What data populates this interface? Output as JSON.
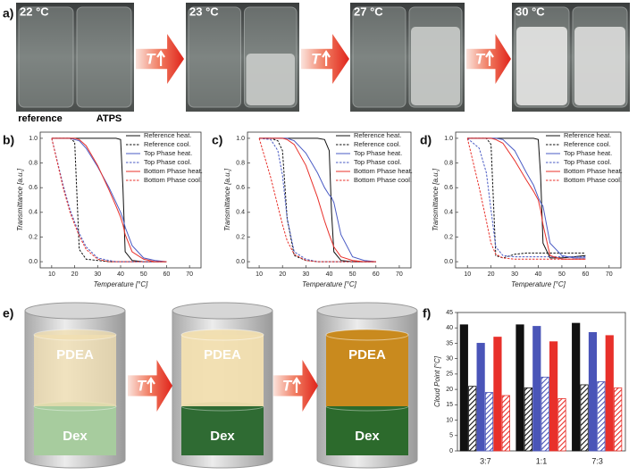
{
  "panel_labels": [
    "a)",
    "b)",
    "c)",
    "d)",
    "e)",
    "f)"
  ],
  "photos": {
    "temperatures": [
      "22 °C",
      "23 °C",
      "27 °C",
      "30 °C"
    ],
    "sample_labels": [
      "reference",
      "ATPS"
    ]
  },
  "arrow_label": "T",
  "diagram": {
    "top_phase": "PDEA",
    "bottom_phase": "Dex"
  },
  "chart_data": [
    {
      "type": "line",
      "xlabel": "Temperature [°C]",
      "ylabel": "Transmittance [a.u.]",
      "x": [
        10,
        15,
        18,
        20,
        22,
        25,
        30,
        35,
        38,
        40,
        41,
        42,
        45,
        50,
        55,
        60
      ],
      "xlim": [
        5,
        75
      ],
      "ylim": [
        -0.05,
        1.05
      ],
      "xticks": [
        10,
        20,
        30,
        40,
        50,
        60,
        70
      ],
      "yticks": [
        {
          "value": 0,
          "label": "0.0"
        },
        {
          "value": 0.2,
          "label": "0.2"
        },
        {
          "value": 0.4,
          "label": "0.4"
        },
        {
          "value": 0.6,
          "label": "0.6"
        },
        {
          "value": 0.8,
          "label": "0.8"
        },
        {
          "value": 1,
          "label": "1.0"
        }
      ],
      "legend": "upper right",
      "series": [
        {
          "name": "Reference heat.",
          "color": "#111111",
          "dashed": false,
          "values": [
            1,
            1,
            1,
            1,
            1,
            1,
            1,
            1,
            1,
            0.99,
            0.6,
            0.08,
            0.01,
            0,
            0,
            0
          ]
        },
        {
          "name": "Reference cool.",
          "color": "#111111",
          "dashed": true,
          "values": [
            1,
            1,
            1,
            0.97,
            0.1,
            0.02,
            0.01,
            0,
            0,
            0,
            0,
            0,
            0,
            0,
            0,
            0
          ]
        },
        {
          "name": "Top Phase heat.",
          "color": "#4a5bc4",
          "dashed": false,
          "values": [
            1,
            1,
            1,
            0.99,
            0.98,
            0.92,
            0.77,
            0.6,
            0.48,
            0.4,
            0.35,
            0.28,
            0.13,
            0.03,
            0.01,
            0
          ]
        },
        {
          "name": "Top Phase cool.",
          "color": "#4a5bc4",
          "dashed": true,
          "values": [
            1,
            0.62,
            0.42,
            0.32,
            0.23,
            0.12,
            0.03,
            0.01,
            0,
            0,
            0,
            0,
            0,
            0,
            0,
            0
          ]
        },
        {
          "name": "Bottom Phase heat.",
          "color": "#e8302a",
          "dashed": false,
          "values": [
            1,
            1,
            1,
            1,
            0.99,
            0.94,
            0.78,
            0.58,
            0.45,
            0.36,
            0.3,
            0.22,
            0.08,
            0.02,
            0,
            0
          ]
        },
        {
          "name": "Bottom Phase cool.",
          "color": "#e8302a",
          "dashed": true,
          "values": [
            1,
            0.6,
            0.4,
            0.3,
            0.21,
            0.1,
            0.02,
            0,
            0,
            0,
            0,
            0,
            0,
            0,
            0,
            0
          ]
        }
      ]
    },
    {
      "type": "line",
      "xlabel": "Temperature [°C]",
      "ylabel": "Transmittance [a.u.]",
      "x": [
        10,
        15,
        18,
        20,
        22,
        25,
        30,
        35,
        38,
        40,
        41,
        42,
        45,
        50,
        55,
        60
      ],
      "xlim": [
        5,
        75
      ],
      "ylim": [
        -0.05,
        1.05
      ],
      "xticks": [
        10,
        20,
        30,
        40,
        50,
        60,
        70
      ],
      "yticks": [
        {
          "value": 0,
          "label": "0.0"
        },
        {
          "value": 0.2,
          "label": "0.2"
        },
        {
          "value": 0.4,
          "label": "0.4"
        },
        {
          "value": 0.6,
          "label": "0.6"
        },
        {
          "value": 0.8,
          "label": "0.8"
        },
        {
          "value": 1,
          "label": "1.0"
        }
      ],
      "legend": "upper right",
      "series": [
        {
          "name": "Reference heat.",
          "color": "#111111",
          "dashed": false,
          "values": [
            1,
            1,
            1,
            1,
            1,
            1,
            1,
            1,
            0.99,
            0.9,
            0.4,
            0.08,
            0.01,
            0,
            0,
            0
          ]
        },
        {
          "name": "Reference cool.",
          "color": "#111111",
          "dashed": true,
          "values": [
            1,
            1,
            0.98,
            0.9,
            0.35,
            0.05,
            0.01,
            0,
            0,
            0,
            0,
            0,
            0,
            0,
            0,
            0
          ]
        },
        {
          "name": "Top Phase heat.",
          "color": "#4a5bc4",
          "dashed": false,
          "values": [
            1,
            1,
            1,
            1,
            1,
            0.98,
            0.88,
            0.72,
            0.6,
            0.54,
            0.52,
            0.48,
            0.22,
            0.04,
            0.01,
            0
          ]
        },
        {
          "name": "Top Phase cool.",
          "color": "#4a5bc4",
          "dashed": true,
          "values": [
            1,
            0.99,
            0.9,
            0.7,
            0.35,
            0.08,
            0.02,
            0,
            0,
            0,
            0,
            0,
            0,
            0,
            0,
            0
          ]
        },
        {
          "name": "Bottom Phase heat.",
          "color": "#e8302a",
          "dashed": false,
          "values": [
            1,
            1,
            1,
            1,
            0.99,
            0.95,
            0.78,
            0.52,
            0.33,
            0.22,
            0.17,
            0.12,
            0.04,
            0.01,
            0,
            0
          ]
        },
        {
          "name": "Bottom Phase cool.",
          "color": "#e8302a",
          "dashed": true,
          "values": [
            1,
            0.68,
            0.45,
            0.3,
            0.17,
            0.06,
            0.01,
            0,
            0,
            0,
            0,
            0,
            0,
            0,
            0,
            0
          ]
        }
      ]
    },
    {
      "type": "line",
      "xlabel": "Temperature [°C]",
      "ylabel": "Transmittance [a.u.]",
      "x": [
        10,
        15,
        18,
        20,
        22,
        25,
        30,
        35,
        38,
        40,
        41,
        42,
        45,
        50,
        55,
        60
      ],
      "xlim": [
        5,
        75
      ],
      "ylim": [
        -0.05,
        1.05
      ],
      "xticks": [
        10,
        20,
        30,
        40,
        50,
        60,
        70
      ],
      "yticks": [
        {
          "value": 0,
          "label": "0.0"
        },
        {
          "value": 0.2,
          "label": "0.2"
        },
        {
          "value": 0.4,
          "label": "0.4"
        },
        {
          "value": 0.6,
          "label": "0.6"
        },
        {
          "value": 0.8,
          "label": "0.8"
        },
        {
          "value": 1,
          "label": "1.0"
        }
      ],
      "legend": "upper right",
      "series": [
        {
          "name": "Reference heat.",
          "color": "#111111",
          "dashed": false,
          "values": [
            1,
            1,
            1,
            1,
            1,
            1,
            1,
            1,
            1,
            0.99,
            0.7,
            0.15,
            0.03,
            0.03,
            0.04,
            0.05
          ]
        },
        {
          "name": "Reference cool.",
          "color": "#111111",
          "dashed": true,
          "values": [
            1,
            1,
            1,
            0.95,
            0.05,
            0.03,
            0.06,
            0.07,
            0.07,
            0.07,
            0.07,
            0.07,
            0.07,
            0.07,
            0.07,
            0.07
          ]
        },
        {
          "name": "Top Phase heat.",
          "color": "#4a5bc4",
          "dashed": false,
          "values": [
            1,
            1,
            1,
            1,
            1,
            0.99,
            0.9,
            0.72,
            0.62,
            0.52,
            0.48,
            0.45,
            0.15,
            0.05,
            0.03,
            0.03
          ]
        },
        {
          "name": "Top Phase cool.",
          "color": "#4a5bc4",
          "dashed": true,
          "values": [
            1,
            0.92,
            0.72,
            0.42,
            0.12,
            0.05,
            0.04,
            0.04,
            0.04,
            0.04,
            0.04,
            0.04,
            0.04,
            0.04,
            0.04,
            0.04
          ]
        },
        {
          "name": "Bottom Phase heat.",
          "color": "#e8302a",
          "dashed": false,
          "values": [
            1,
            1,
            1,
            1,
            0.99,
            0.96,
            0.82,
            0.66,
            0.57,
            0.5,
            0.42,
            0.3,
            0.05,
            0.02,
            0.02,
            0.02
          ]
        },
        {
          "name": "Bottom Phase cool.",
          "color": "#e8302a",
          "dashed": true,
          "values": [
            1,
            0.6,
            0.33,
            0.15,
            0.06,
            0.03,
            0.02,
            0.02,
            0.02,
            0.02,
            0.02,
            0.02,
            0.02,
            0.02,
            0.02,
            0.02
          ]
        }
      ]
    },
    {
      "type": "bar",
      "ylabel": "Cloud Point [°C]",
      "categories": [
        "3:7",
        "1:1",
        "7:3"
      ],
      "ylim": [
        0,
        45
      ],
      "yticks": [
        0,
        5,
        10,
        15,
        20,
        25,
        30,
        35,
        40,
        45
      ],
      "series": [
        {
          "color": "#111111",
          "hatch": false,
          "values": [
            41,
            41,
            41.5
          ]
        },
        {
          "color": "#111111",
          "hatch": true,
          "values": [
            21,
            20.5,
            21.5
          ]
        },
        {
          "color": "#4a55b8",
          "hatch": false,
          "values": [
            35,
            40.5,
            38.5
          ]
        },
        {
          "color": "#4a55b8",
          "hatch": true,
          "values": [
            19,
            24,
            22.5
          ]
        },
        {
          "color": "#e8302a",
          "hatch": false,
          "values": [
            37,
            35.5,
            37.5
          ]
        },
        {
          "color": "#e8302a",
          "hatch": true,
          "values": [
            18,
            17,
            20.5
          ]
        }
      ]
    }
  ]
}
